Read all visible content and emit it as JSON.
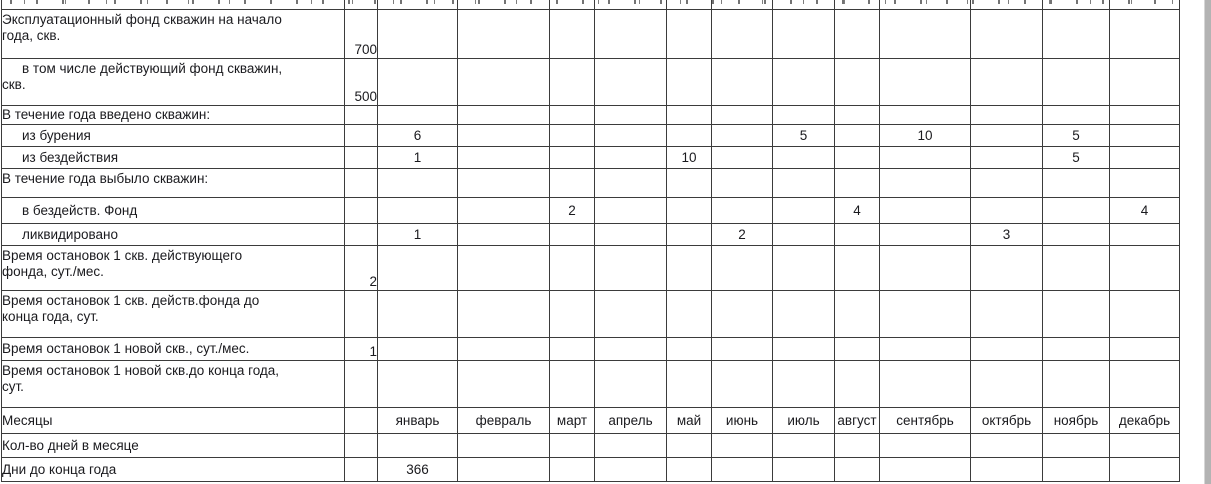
{
  "ui": {
    "scrollbar_color": "#b3b3b3"
  },
  "table": {
    "rows": [
      {
        "label": "Эксплуатационный фонд скважин на начало\nгода, скв.",
        "indent": false,
        "value": "700",
        "cells": [
          "",
          "",
          "",
          "",
          "",
          "",
          "",
          "",
          "",
          "",
          "",
          ""
        ]
      },
      {
        "label": "в том числе действующий фонд скважин,\nскв.",
        "indent": true,
        "value": "500",
        "cells": [
          "",
          "",
          "",
          "",
          "",
          "",
          "",
          "",
          "",
          "",
          "",
          ""
        ]
      },
      {
        "label": "В течение года введено скважин:",
        "indent": false,
        "value": "",
        "cells": [
          "",
          "",
          "",
          "",
          "",
          "",
          "",
          "",
          "",
          "",
          "",
          ""
        ]
      },
      {
        "label": "из бурения",
        "indent": true,
        "value": "",
        "cells": [
          "6",
          "",
          "",
          "",
          "",
          "",
          "5",
          "",
          "10",
          "",
          "5",
          ""
        ]
      },
      {
        "label": "из бездействия",
        "indent": true,
        "value": "",
        "cells": [
          "1",
          "",
          "",
          "",
          "10",
          "",
          "",
          "",
          "",
          "",
          "5",
          ""
        ]
      },
      {
        "label": "В течение года выбыло скважин:",
        "indent": false,
        "value": "",
        "cells": [
          "",
          "",
          "",
          "",
          "",
          "",
          "",
          "",
          "",
          "",
          "",
          ""
        ]
      },
      {
        "label": "в бездейств. Фонд",
        "indent": true,
        "value": "",
        "cells": [
          "",
          "",
          "2",
          "",
          "",
          "",
          "",
          "4",
          "",
          "",
          "",
          "4"
        ]
      },
      {
        "label": "ликвидировано",
        "indent": true,
        "value": "",
        "cells": [
          "1",
          "",
          "",
          "",
          "",
          "2",
          "",
          "",
          "",
          "3",
          "",
          ""
        ]
      },
      {
        "label": "Время остановок 1 скв. действующего\nфонда, сут./мес.",
        "indent": false,
        "value": "2",
        "cells": [
          "",
          "",
          "",
          "",
          "",
          "",
          "",
          "",
          "",
          "",
          "",
          ""
        ]
      },
      {
        "label": "Время остановок 1 скв. действ.фонда до\nконца года, сут.",
        "indent": false,
        "value": "",
        "cells": [
          "",
          "",
          "",
          "",
          "",
          "",
          "",
          "",
          "",
          "",
          "",
          ""
        ]
      },
      {
        "label": "Время остановок 1 новой скв., сут./мес.",
        "indent": false,
        "value": "1",
        "cells": [
          "",
          "",
          "",
          "",
          "",
          "",
          "",
          "",
          "",
          "",
          "",
          ""
        ]
      },
      {
        "label": "Время остановок 1 новой скв.до конца года,\nсут.",
        "indent": false,
        "value": "",
        "cells": [
          "",
          "",
          "",
          "",
          "",
          "",
          "",
          "",
          "",
          "",
          "",
          ""
        ]
      },
      {
        "label": "Месяцы",
        "indent": false,
        "value": "",
        "header": true,
        "cells": [
          "январь",
          "февраль",
          "март",
          "апрель",
          "май",
          "июнь",
          "июль",
          "август",
          "сентябрь",
          "октябрь",
          "ноябрь",
          "декабрь"
        ]
      },
      {
        "label": "Кол-во дней в месяце",
        "indent": false,
        "value": "",
        "cells": [
          "",
          "",
          "",
          "",
          "",
          "",
          "",
          "",
          "",
          "",
          "",
          ""
        ]
      },
      {
        "label": "Дни до конца года",
        "indent": false,
        "value": "",
        "cells": [
          "366",
          "",
          "",
          "",
          "",
          "",
          "",
          "",
          "",
          "",
          "",
          ""
        ]
      }
    ]
  }
}
